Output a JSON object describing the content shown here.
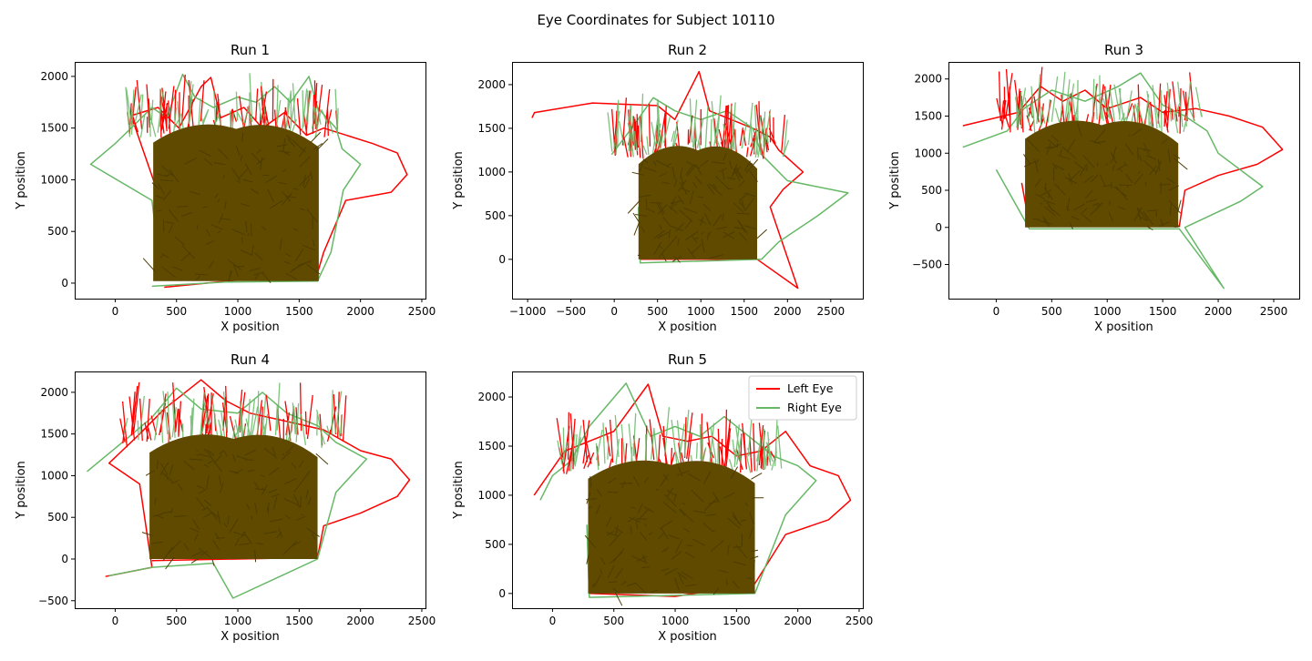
{
  "figure": {
    "suptitle": "Eye Coordinates for Subject 10110"
  },
  "colors": {
    "left_eye": "#ff0000",
    "right_eye": "#66b866",
    "overlap": "#604a00"
  },
  "chart_data": [
    {
      "type": "line",
      "title": "Run 1",
      "xlabel": "X position",
      "ylabel": "Y position",
      "xlim": [
        -330,
        2530
      ],
      "ylim": [
        -150,
        2140
      ],
      "xticks": [
        0,
        500,
        1000,
        1500,
        2000,
        2500
      ],
      "yticks": [
        0,
        500,
        1000,
        1500,
        2000
      ],
      "grid": false,
      "dense_region": {
        "x": [
          310,
          1660
        ],
        "y": [
          20,
          1580
        ]
      },
      "series": [
        {
          "name": "Left Eye",
          "values": [
            [
              500,
              30
            ],
            [
              340,
              900
            ],
            [
              130,
              1620
            ],
            [
              350,
              1700
            ],
            [
              520,
              1500
            ],
            [
              700,
              1900
            ],
            [
              780,
              1990
            ],
            [
              860,
              1600
            ],
            [
              1050,
              1700
            ],
            [
              1200,
              1500
            ],
            [
              1380,
              1650
            ],
            [
              1560,
              1430
            ],
            [
              1700,
              1500
            ],
            [
              2100,
              1350
            ],
            [
              2300,
              1260
            ],
            [
              2380,
              1050
            ],
            [
              2250,
              880
            ],
            [
              1880,
              800
            ],
            [
              1700,
              300
            ],
            [
              1640,
              60
            ],
            [
              1000,
              30
            ],
            [
              400,
              -40
            ]
          ]
        },
        {
          "name": "Right Eye",
          "values": [
            [
              360,
              200
            ],
            [
              300,
              800
            ],
            [
              -200,
              1150
            ],
            [
              0,
              1350
            ],
            [
              130,
              1500
            ],
            [
              300,
              1700
            ],
            [
              420,
              1600
            ],
            [
              550,
              2020
            ],
            [
              650,
              1800
            ],
            [
              800,
              1700
            ],
            [
              1000,
              1800
            ],
            [
              1150,
              1750
            ],
            [
              1300,
              1900
            ],
            [
              1430,
              1750
            ],
            [
              1580,
              2000
            ],
            [
              1650,
              1700
            ],
            [
              1800,
              1500
            ],
            [
              1850,
              1300
            ],
            [
              2000,
              1150
            ],
            [
              1860,
              900
            ],
            [
              1760,
              300
            ],
            [
              1650,
              20
            ],
            [
              900,
              10
            ],
            [
              300,
              -30
            ]
          ]
        }
      ]
    },
    {
      "type": "line",
      "title": "Run 2",
      "xlabel": "X position",
      "ylabel": "Y position",
      "xlim": [
        -1180,
        2870
      ],
      "ylim": [
        -450,
        2260
      ],
      "xticks": [
        -1000,
        -500,
        0,
        500,
        1000,
        1500,
        2000,
        2500
      ],
      "yticks": [
        0,
        500,
        1000,
        1500,
        2000
      ],
      "grid": false,
      "dense_region": {
        "x": [
          280,
          1650
        ],
        "y": [
          0,
          1350
        ]
      },
      "series": [
        {
          "name": "Left Eye",
          "values": [
            [
              -950,
              1620
            ],
            [
              -920,
              1680
            ],
            [
              -250,
              1790
            ],
            [
              500,
              1760
            ],
            [
              700,
              1600
            ],
            [
              980,
              2150
            ],
            [
              1100,
              1700
            ],
            [
              1350,
              1600
            ],
            [
              1600,
              1500
            ],
            [
              1800,
              1400
            ],
            [
              1900,
              1250
            ],
            [
              2180,
              1000
            ],
            [
              1950,
              800
            ],
            [
              1800,
              600
            ],
            [
              2120,
              -330
            ],
            [
              1650,
              0
            ],
            [
              300,
              0
            ]
          ]
        },
        {
          "name": "Right Eye",
          "values": [
            [
              -30,
              1200
            ],
            [
              200,
              1500
            ],
            [
              450,
              1850
            ],
            [
              700,
              1700
            ],
            [
              1000,
              1600
            ],
            [
              1300,
              1700
            ],
            [
              1600,
              1500
            ],
            [
              1700,
              1200
            ],
            [
              2000,
              900
            ],
            [
              2700,
              760
            ],
            [
              2350,
              500
            ],
            [
              1900,
              200
            ],
            [
              1700,
              0
            ],
            [
              300,
              -40
            ],
            [
              280,
              600
            ]
          ]
        }
      ]
    },
    {
      "type": "line",
      "title": "Run 3",
      "xlabel": "X position",
      "ylabel": "Y position",
      "xlim": [
        -430,
        2730
      ],
      "ylim": [
        -960,
        2230
      ],
      "xticks": [
        0,
        500,
        1000,
        1500,
        2000,
        2500
      ],
      "yticks": [
        -500,
        0,
        500,
        1000,
        1500,
        2000
      ],
      "grid": false,
      "dense_region": {
        "x": [
          260,
          1640
        ],
        "y": [
          0,
          1500
        ]
      },
      "series": [
        {
          "name": "Left Eye",
          "values": [
            [
              -300,
              1370
            ],
            [
              200,
              1550
            ],
            [
              400,
              1900
            ],
            [
              600,
              1700
            ],
            [
              800,
              1850
            ],
            [
              1000,
              1600
            ],
            [
              1300,
              1750
            ],
            [
              1500,
              1550
            ],
            [
              1800,
              1600
            ],
            [
              2100,
              1500
            ],
            [
              2400,
              1350
            ],
            [
              2580,
              1050
            ],
            [
              2350,
              850
            ],
            [
              2000,
              700
            ],
            [
              1700,
              500
            ],
            [
              1650,
              20
            ],
            [
              300,
              20
            ],
            [
              230,
              600
            ]
          ]
        },
        {
          "name": "Right Eye",
          "values": [
            [
              -300,
              1080
            ],
            [
              100,
              1300
            ],
            [
              250,
              1600
            ],
            [
              500,
              1850
            ],
            [
              800,
              1700
            ],
            [
              1100,
              1900
            ],
            [
              1300,
              2080
            ],
            [
              1500,
              1650
            ],
            [
              1700,
              1500
            ],
            [
              1900,
              1300
            ],
            [
              2000,
              1000
            ],
            [
              2400,
              550
            ],
            [
              2200,
              350
            ],
            [
              1700,
              0
            ],
            [
              2050,
              -820
            ],
            [
              1650,
              -20
            ],
            [
              300,
              -20
            ],
            [
              0,
              780
            ]
          ]
        }
      ]
    },
    {
      "type": "line",
      "title": "Run 4",
      "xlabel": "X position",
      "ylabel": "Y position",
      "xlim": [
        -330,
        2530
      ],
      "ylim": [
        -590,
        2250
      ],
      "xticks": [
        0,
        500,
        1000,
        1500,
        2000,
        2500
      ],
      "yticks": [
        -500,
        0,
        500,
        1000,
        1500,
        2000
      ],
      "grid": false,
      "dense_region": {
        "x": [
          280,
          1650
        ],
        "y": [
          0,
          1550
        ]
      },
      "series": [
        {
          "name": "Left Eye",
          "values": [
            [
              -80,
              -210
            ],
            [
              300,
              -100
            ],
            [
              200,
              900
            ],
            [
              -50,
              1150
            ],
            [
              200,
              1500
            ],
            [
              400,
              1800
            ],
            [
              700,
              2150
            ],
            [
              900,
              1900
            ],
            [
              1100,
              1750
            ],
            [
              1400,
              1650
            ],
            [
              1700,
              1550
            ],
            [
              2000,
              1300
            ],
            [
              2250,
              1200
            ],
            [
              2400,
              950
            ],
            [
              2300,
              750
            ],
            [
              2000,
              550
            ],
            [
              1700,
              400
            ],
            [
              1650,
              20
            ],
            [
              300,
              -20
            ]
          ]
        },
        {
          "name": "Right Eye",
          "values": [
            [
              -230,
              1050
            ],
            [
              100,
              1450
            ],
            [
              300,
              1700
            ],
            [
              500,
              2050
            ],
            [
              700,
              1800
            ],
            [
              1000,
              1750
            ],
            [
              1200,
              2000
            ],
            [
              1400,
              1750
            ],
            [
              1650,
              1600
            ],
            [
              1800,
              1400
            ],
            [
              2050,
              1200
            ],
            [
              1800,
              800
            ],
            [
              1650,
              0
            ],
            [
              960,
              -470
            ],
            [
              800,
              -50
            ],
            [
              300,
              -100
            ],
            [
              -50,
              -200
            ]
          ]
        }
      ]
    },
    {
      "type": "line",
      "title": "Run 5",
      "xlabel": "X position",
      "ylabel": "Y position",
      "xlim": [
        -330,
        2530
      ],
      "ylim": [
        -150,
        2260
      ],
      "xticks": [
        0,
        500,
        1000,
        1500,
        2000,
        2500
      ],
      "yticks": [
        0,
        500,
        1000,
        1500,
        2000
      ],
      "grid": false,
      "legend": "top-right",
      "dense_region": {
        "x": [
          290,
          1650
        ],
        "y": [
          0,
          1400
        ]
      },
      "series": [
        {
          "name": "Left Eye",
          "values": [
            [
              -150,
              1000
            ],
            [
              100,
              1450
            ],
            [
              300,
              1550
            ],
            [
              500,
              1650
            ],
            [
              780,
              2130
            ],
            [
              900,
              1600
            ],
            [
              1100,
              1550
            ],
            [
              1300,
              1600
            ],
            [
              1500,
              1400
            ],
            [
              1700,
              1450
            ],
            [
              1900,
              1650
            ],
            [
              2100,
              1300
            ],
            [
              2330,
              1200
            ],
            [
              2430,
              950
            ],
            [
              2250,
              750
            ],
            [
              1900,
              600
            ],
            [
              1650,
              100
            ],
            [
              1000,
              -30
            ],
            [
              300,
              0
            ]
          ]
        },
        {
          "name": "Right Eye",
          "values": [
            [
              -100,
              950
            ],
            [
              0,
              1200
            ],
            [
              150,
              1350
            ],
            [
              300,
              1700
            ],
            [
              600,
              2140
            ],
            [
              800,
              1600
            ],
            [
              1000,
              1700
            ],
            [
              1200,
              1600
            ],
            [
              1400,
              1800
            ],
            [
              1600,
              1600
            ],
            [
              1800,
              1400
            ],
            [
              2000,
              1300
            ],
            [
              2150,
              1150
            ],
            [
              1900,
              800
            ],
            [
              1650,
              0
            ],
            [
              300,
              -40
            ],
            [
              280,
              700
            ]
          ]
        }
      ]
    }
  ]
}
